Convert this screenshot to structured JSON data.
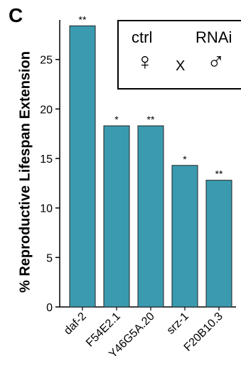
{
  "panel_label": "C",
  "legend": {
    "ctrl_label": "ctrl",
    "rnai_label": "RNAi",
    "female_symbol": "♀",
    "cross_symbol": "X",
    "male_symbol": "♂"
  },
  "chart_data": {
    "type": "bar",
    "title": "",
    "xlabel": "",
    "ylabel": "% Reproductive Lifespan Extension",
    "categories": [
      "daf-2",
      "F54E2.1",
      "Y46G5A.20",
      "srz-1",
      "F20B10.3"
    ],
    "values": [
      28.4,
      18.3,
      18.3,
      14.3,
      12.8
    ],
    "significance": [
      "**",
      "*",
      "**",
      "*",
      "**"
    ],
    "ylim": [
      0,
      29
    ],
    "yticks": [
      0,
      5,
      10,
      15,
      20,
      25
    ],
    "grid": false,
    "bar_color": "#3a9bb0"
  }
}
